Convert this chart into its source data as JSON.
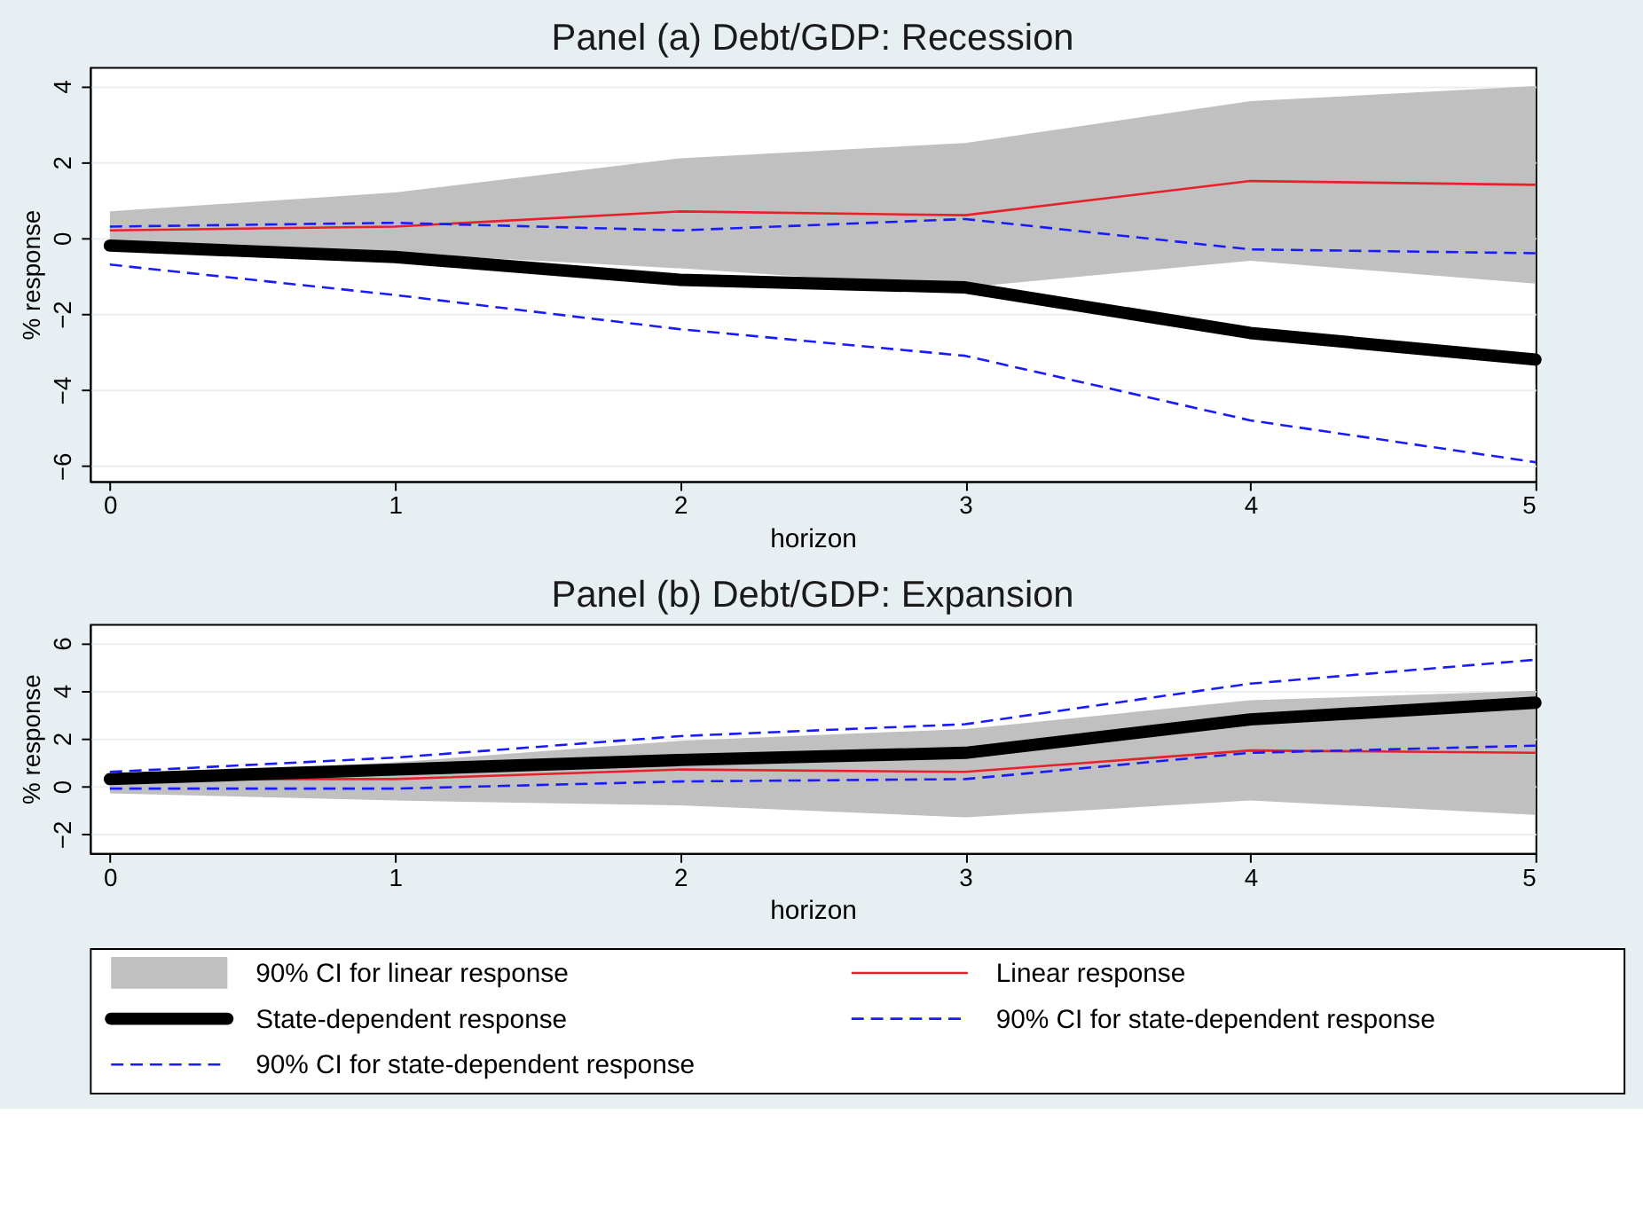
{
  "chart_data": [
    {
      "type": "line",
      "title": "Panel (a) Debt/GDP: Recession",
      "xlabel": "horizon",
      "ylabel": "% response",
      "x": [
        0,
        1,
        2,
        3,
        4,
        5
      ],
      "xlim": [
        -0.07,
        5
      ],
      "xticks": [
        0,
        1,
        2,
        3,
        4,
        5
      ],
      "ylim": [
        -6.4,
        4.5
      ],
      "yticks": [
        -6,
        -4,
        -2,
        0,
        2,
        4
      ],
      "grid": "y",
      "legend": false,
      "series": [
        {
          "type": "line",
          "color": "#e8202a",
          "line_style": "solid",
          "values": [
            0.2,
            0.3,
            0.7,
            0.6,
            1.5,
            1.4
          ],
          "lower": [
            -0.3,
            -0.4,
            -0.8,
            -1.3,
            -0.6,
            -1.2
          ],
          "upper": [
            0.7,
            1.2,
            2.1,
            2.5,
            3.6,
            4.0
          ]
        },
        {
          "type": "line",
          "color": "#000000",
          "line_style": "solid",
          "values": [
            -0.2,
            -0.5,
            -1.1,
            -1.3,
            -2.5,
            -3.2
          ]
        },
        {
          "type": "line",
          "color": "#1a1aff",
          "line_style": "dashed",
          "values": [
            0.3,
            0.4,
            0.2,
            0.5,
            -0.3,
            -0.4
          ]
        },
        {
          "type": "line",
          "color": "#1a1aff",
          "line_style": "dashed",
          "values": [
            -0.7,
            -1.5,
            -2.4,
            -3.1,
            -4.8,
            -5.9
          ]
        }
      ]
    },
    {
      "type": "line",
      "title": "Panel (b) Debt/GDP: Expansion",
      "xlabel": "horizon",
      "ylabel": "% response",
      "x": [
        0,
        1,
        2,
        3,
        4,
        5
      ],
      "xlim": [
        -0.07,
        5
      ],
      "xticks": [
        0,
        1,
        2,
        3,
        4,
        5
      ],
      "ylim": [
        -2.8,
        6.8
      ],
      "yticks": [
        -2,
        0,
        2,
        4,
        6
      ],
      "grid": "y",
      "legend": "bottom",
      "annotations": [
        "90% CI for linear response"
      ],
      "series": [
        {
          "name": "Linear response",
          "type": "line",
          "color": "#e8202a",
          "line_style": "solid",
          "values": [
            0.3,
            0.3,
            0.7,
            0.6,
            1.5,
            1.4
          ],
          "lower": [
            -0.3,
            -0.6,
            -0.8,
            -1.3,
            -0.6,
            -1.2
          ],
          "upper": [
            0.4,
            1.0,
            1.9,
            2.4,
            3.6,
            4.0
          ]
        },
        {
          "name": "State-dependent response",
          "type": "line",
          "color": "#000000",
          "line_style": "solid",
          "values": [
            0.3,
            0.7,
            1.1,
            1.4,
            2.8,
            3.5
          ]
        },
        {
          "name": "90% CI for state-dependent response",
          "type": "line",
          "color": "#1a1aff",
          "line_style": "dashed",
          "values": [
            0.6,
            1.2,
            2.1,
            2.6,
            4.3,
            5.3
          ]
        },
        {
          "name": "90% CI for state-dependent response",
          "type": "line",
          "color": "#1a1aff",
          "line_style": "dashed",
          "values": [
            -0.1,
            -0.1,
            0.2,
            0.3,
            1.4,
            1.7
          ]
        }
      ]
    }
  ]
}
